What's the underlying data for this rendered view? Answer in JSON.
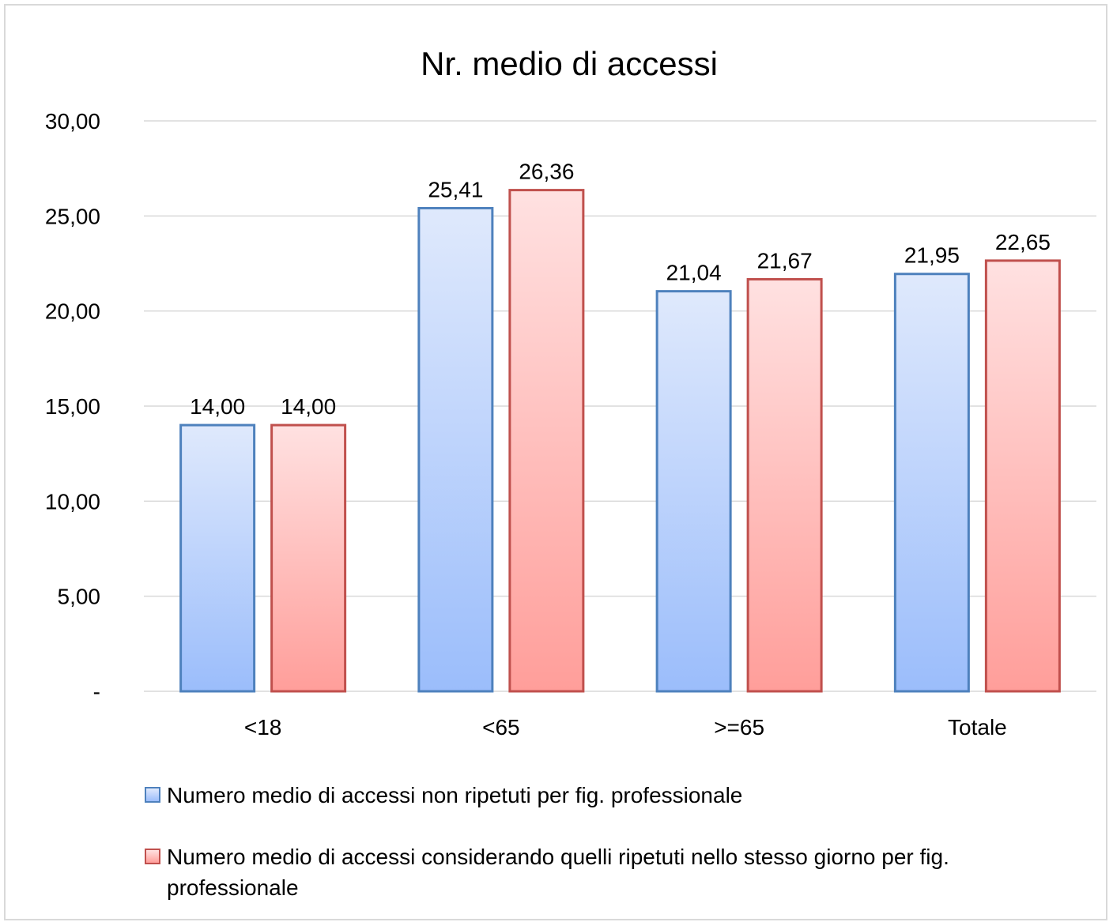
{
  "chart_data": {
    "type": "bar",
    "title": "Nr. medio di accessi",
    "categories": [
      "<18",
      "<65",
      ">=65",
      "Totale"
    ],
    "ylim": [
      0,
      30
    ],
    "yticks": [
      "-",
      "5,00",
      "10,00",
      "15,00",
      "20,00",
      "25,00",
      "30,00"
    ],
    "ytick_values": [
      0,
      5,
      10,
      15,
      20,
      25,
      30
    ],
    "grid": true,
    "legend_position": "bottom",
    "series": [
      {
        "name": "Numero medio di accessi non ripetuti per fig. professionale",
        "values": [
          14.0,
          25.41,
          21.04,
          21.95
        ],
        "labels": [
          "14,00",
          "25,41",
          "21,04",
          "21,95"
        ],
        "color_top": "#dfe9fc",
        "color_bottom": "#9bbdfb",
        "border": "#4e81bd"
      },
      {
        "name": "Numero medio di accessi considerando quelli ripetuti nello stesso giorno per fig. professionale",
        "values": [
          14.0,
          26.36,
          21.67,
          22.65
        ],
        "labels": [
          "14,00",
          "26,36",
          "21,67",
          "22,65"
        ],
        "color_top": "#ffe1e1",
        "color_bottom": "#ff9e9a",
        "border": "#c0504d"
      }
    ]
  }
}
